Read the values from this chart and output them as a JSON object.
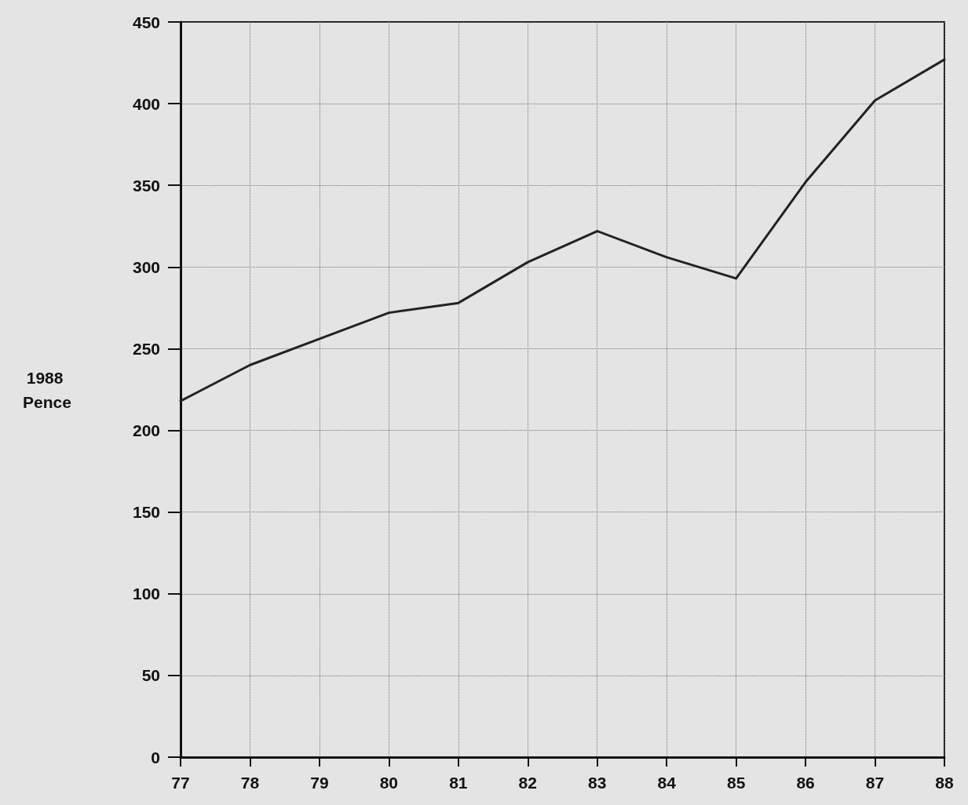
{
  "chart_data": {
    "type": "line",
    "ylabel": "1988 Pence",
    "categories": [
      "77",
      "78",
      "79",
      "80",
      "81",
      "82",
      "83",
      "84",
      "85",
      "86",
      "87",
      "88"
    ],
    "series": [
      {
        "color": "#222222",
        "values": [
          218,
          240,
          256,
          272,
          278,
          303,
          322,
          306,
          293,
          352,
          402,
          427
        ]
      }
    ],
    "ylim": [
      0,
      450
    ],
    "yticks": [
      0,
      50,
      100,
      150,
      200,
      250,
      300,
      350,
      400,
      450
    ],
    "grid": true,
    "marker": "none",
    "line_style": "solid"
  }
}
